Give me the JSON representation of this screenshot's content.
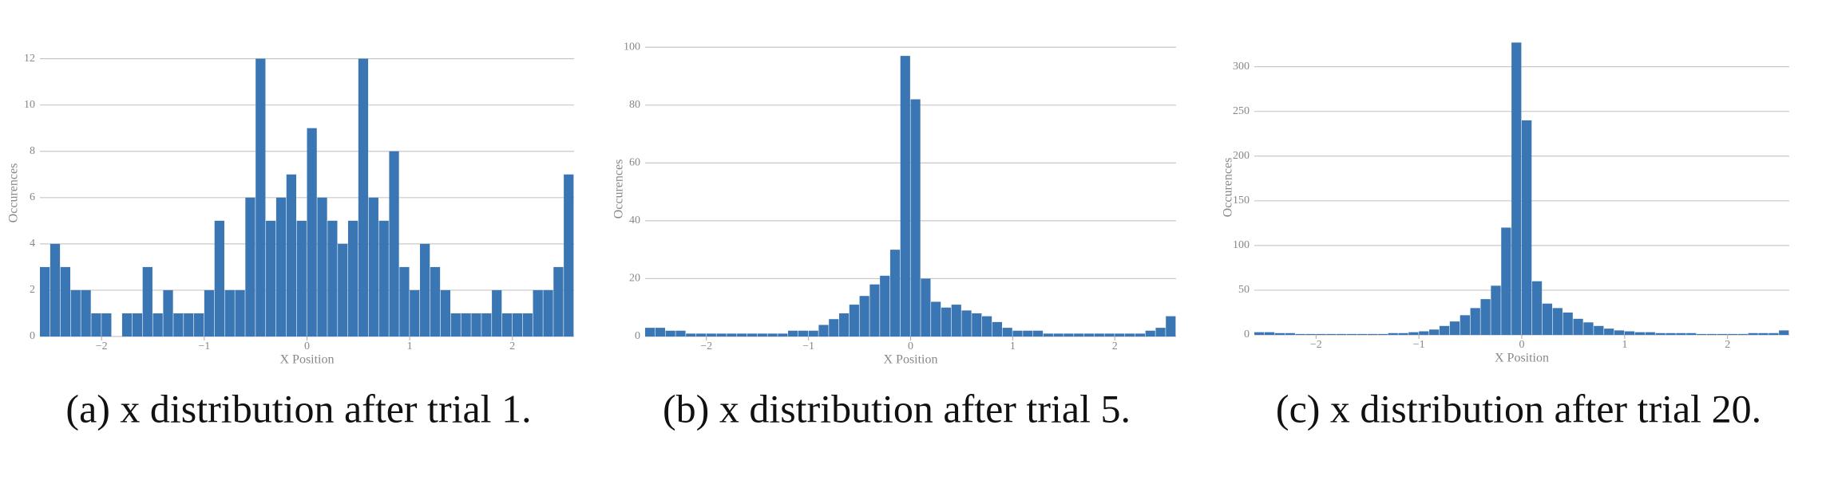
{
  "chart_data": [
    {
      "type": "histogram",
      "x_label": "X Position",
      "y_label": "Occurences",
      "caption": "(a) x distribution after trial 1.",
      "color": "#3a76b3",
      "grid": true,
      "bins": [
        -2.6,
        -2.5,
        -2.4,
        -2.3,
        -2.2,
        -2.1,
        -2.0,
        -1.9,
        -1.8,
        -1.7,
        -1.6,
        -1.5,
        -1.4,
        -1.3,
        -1.2,
        -1.1,
        -1.0,
        -0.9,
        -0.8,
        -0.7,
        -0.6,
        -0.5,
        -0.4,
        -0.3,
        -0.2,
        -0.1,
        0,
        0.1,
        0.2,
        0.3,
        0.4,
        0.5,
        0.6,
        0.7,
        0.8,
        0.9,
        1.0,
        1.1,
        1.2,
        1.3,
        1.4,
        1.5,
        1.6,
        1.7,
        1.8,
        1.9,
        2.0,
        2.1,
        2.2,
        2.3,
        2.4,
        2.5,
        2.6
      ],
      "values": [
        3,
        4,
        3,
        2,
        2,
        1,
        1,
        0,
        1,
        1,
        3,
        1,
        2,
        1,
        1,
        1,
        2,
        5,
        2,
        2,
        6,
        12,
        5,
        6,
        7,
        5,
        9,
        6,
        5,
        4,
        5,
        12,
        6,
        5,
        8,
        3,
        2,
        4,
        3,
        2,
        1,
        1,
        1,
        1,
        2,
        1,
        1,
        1,
        2,
        2,
        3,
        7
      ],
      "xlim": [
        -2.6,
        2.6
      ],
      "xticks": [
        {
          "value": -2,
          "label": "−2"
        },
        {
          "value": -1,
          "label": "−1"
        },
        0,
        1,
        2
      ],
      "ylim": [
        0,
        12.4
      ],
      "yticks": [
        0,
        2,
        4,
        6,
        8,
        10,
        12
      ]
    },
    {
      "type": "histogram",
      "x_label": "X Position",
      "y_label": "Occurences",
      "caption": "(b) x distribution after trial 5.",
      "color": "#3a76b3",
      "grid": true,
      "bins": [
        -2.6,
        -2.5,
        -2.4,
        -2.3,
        -2.2,
        -2.1,
        -2.0,
        -1.9,
        -1.8,
        -1.7,
        -1.6,
        -1.5,
        -1.4,
        -1.3,
        -1.2,
        -1.1,
        -1.0,
        -0.9,
        -0.8,
        -0.7,
        -0.6,
        -0.5,
        -0.4,
        -0.3,
        -0.2,
        -0.1,
        0,
        0.1,
        0.2,
        0.3,
        0.4,
        0.5,
        0.6,
        0.7,
        0.8,
        0.9,
        1.0,
        1.1,
        1.2,
        1.3,
        1.4,
        1.5,
        1.6,
        1.7,
        1.8,
        1.9,
        2.0,
        2.1,
        2.2,
        2.3,
        2.4,
        2.5,
        2.6
      ],
      "values": [
        3,
        3,
        2,
        2,
        1,
        1,
        1,
        1,
        1,
        1,
        1,
        1,
        1,
        1,
        2,
        2,
        2,
        4,
        6,
        8,
        11,
        14,
        18,
        21,
        30,
        97,
        82,
        20,
        12,
        10,
        11,
        9,
        8,
        7,
        5,
        3,
        2,
        2,
        2,
        1,
        1,
        1,
        1,
        1,
        1,
        1,
        1,
        1,
        1,
        2,
        3,
        7
      ],
      "xlim": [
        -2.6,
        2.6
      ],
      "xticks": [
        {
          "value": -2,
          "label": "−2"
        },
        {
          "value": -1,
          "label": "−1"
        },
        0,
        1,
        2
      ],
      "ylim": [
        0,
        102
      ],
      "yticks": [
        0,
        20,
        40,
        60,
        80,
        100
      ]
    },
    {
      "type": "histogram",
      "x_label": "X Position",
      "y_label": "Occurences",
      "caption": "(c) x distribution after trial 20.",
      "color": "#3a76b3",
      "grid": true,
      "bins": [
        -2.6,
        -2.5,
        -2.4,
        -2.3,
        -2.2,
        -2.1,
        -2.0,
        -1.9,
        -1.8,
        -1.7,
        -1.6,
        -1.5,
        -1.4,
        -1.3,
        -1.2,
        -1.1,
        -1.0,
        -0.9,
        -0.8,
        -0.7,
        -0.6,
        -0.5,
        -0.4,
        -0.3,
        -0.2,
        -0.1,
        0,
        0.1,
        0.2,
        0.3,
        0.4,
        0.5,
        0.6,
        0.7,
        0.8,
        0.9,
        1.0,
        1.1,
        1.2,
        1.3,
        1.4,
        1.5,
        1.6,
        1.7,
        1.8,
        1.9,
        2.0,
        2.1,
        2.2,
        2.3,
        2.4,
        2.5,
        2.6
      ],
      "values": [
        3,
        3,
        2,
        2,
        1,
        1,
        1,
        1,
        1,
        1,
        1,
        1,
        1,
        2,
        2,
        3,
        4,
        6,
        10,
        15,
        22,
        30,
        40,
        55,
        120,
        327,
        240,
        60,
        35,
        30,
        25,
        18,
        14,
        10,
        7,
        5,
        4,
        3,
        3,
        2,
        2,
        2,
        2,
        1,
        1,
        1,
        1,
        1,
        2,
        2,
        2,
        5
      ],
      "xlim": [
        -2.6,
        2.6
      ],
      "xticks": [
        {
          "value": -2,
          "label": "−2"
        },
        {
          "value": -1,
          "label": "−1"
        },
        0,
        1,
        2
      ],
      "ylim": [
        0,
        330
      ],
      "yticks": [
        0,
        50,
        100,
        150,
        200,
        250,
        300
      ]
    }
  ]
}
